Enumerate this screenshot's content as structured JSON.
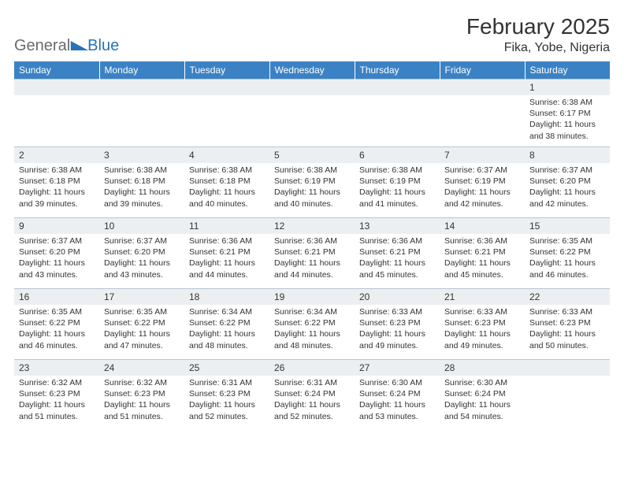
{
  "brand": {
    "part1": "General",
    "part2": "Blue"
  },
  "header": {
    "month_title": "February 2025",
    "location": "Fika, Yobe, Nigeria"
  },
  "weekdays": [
    "Sunday",
    "Monday",
    "Tuesday",
    "Wednesday",
    "Thursday",
    "Friday",
    "Saturday"
  ],
  "colors": {
    "header_bg": "#3b82c4",
    "header_text": "#ffffff",
    "daynum_bg": "#eceff1",
    "border": "#b9c5cf",
    "logo_gray": "#6b6b6b",
    "logo_blue": "#2a72b5",
    "text": "#333333",
    "page_bg": "#ffffff"
  },
  "typography": {
    "month_title_size": 28,
    "location_size": 16,
    "weekday_size": 12,
    "daynum_size": 12,
    "body_size": 10.5
  },
  "layout": {
    "columns": 7,
    "rows": 5,
    "blank_leading_cells": 6
  },
  "days": [
    {
      "n": "1",
      "sunrise": "6:38 AM",
      "sunset": "6:17 PM",
      "daylight": "11 hours and 38 minutes."
    },
    {
      "n": "2",
      "sunrise": "6:38 AM",
      "sunset": "6:18 PM",
      "daylight": "11 hours and 39 minutes."
    },
    {
      "n": "3",
      "sunrise": "6:38 AM",
      "sunset": "6:18 PM",
      "daylight": "11 hours and 39 minutes."
    },
    {
      "n": "4",
      "sunrise": "6:38 AM",
      "sunset": "6:18 PM",
      "daylight": "11 hours and 40 minutes."
    },
    {
      "n": "5",
      "sunrise": "6:38 AM",
      "sunset": "6:19 PM",
      "daylight": "11 hours and 40 minutes."
    },
    {
      "n": "6",
      "sunrise": "6:38 AM",
      "sunset": "6:19 PM",
      "daylight": "11 hours and 41 minutes."
    },
    {
      "n": "7",
      "sunrise": "6:37 AM",
      "sunset": "6:19 PM",
      "daylight": "11 hours and 42 minutes."
    },
    {
      "n": "8",
      "sunrise": "6:37 AM",
      "sunset": "6:20 PM",
      "daylight": "11 hours and 42 minutes."
    },
    {
      "n": "9",
      "sunrise": "6:37 AM",
      "sunset": "6:20 PM",
      "daylight": "11 hours and 43 minutes."
    },
    {
      "n": "10",
      "sunrise": "6:37 AM",
      "sunset": "6:20 PM",
      "daylight": "11 hours and 43 minutes."
    },
    {
      "n": "11",
      "sunrise": "6:36 AM",
      "sunset": "6:21 PM",
      "daylight": "11 hours and 44 minutes."
    },
    {
      "n": "12",
      "sunrise": "6:36 AM",
      "sunset": "6:21 PM",
      "daylight": "11 hours and 44 minutes."
    },
    {
      "n": "13",
      "sunrise": "6:36 AM",
      "sunset": "6:21 PM",
      "daylight": "11 hours and 45 minutes."
    },
    {
      "n": "14",
      "sunrise": "6:36 AM",
      "sunset": "6:21 PM",
      "daylight": "11 hours and 45 minutes."
    },
    {
      "n": "15",
      "sunrise": "6:35 AM",
      "sunset": "6:22 PM",
      "daylight": "11 hours and 46 minutes."
    },
    {
      "n": "16",
      "sunrise": "6:35 AM",
      "sunset": "6:22 PM",
      "daylight": "11 hours and 46 minutes."
    },
    {
      "n": "17",
      "sunrise": "6:35 AM",
      "sunset": "6:22 PM",
      "daylight": "11 hours and 47 minutes."
    },
    {
      "n": "18",
      "sunrise": "6:34 AM",
      "sunset": "6:22 PM",
      "daylight": "11 hours and 48 minutes."
    },
    {
      "n": "19",
      "sunrise": "6:34 AM",
      "sunset": "6:22 PM",
      "daylight": "11 hours and 48 minutes."
    },
    {
      "n": "20",
      "sunrise": "6:33 AM",
      "sunset": "6:23 PM",
      "daylight": "11 hours and 49 minutes."
    },
    {
      "n": "21",
      "sunrise": "6:33 AM",
      "sunset": "6:23 PM",
      "daylight": "11 hours and 49 minutes."
    },
    {
      "n": "22",
      "sunrise": "6:33 AM",
      "sunset": "6:23 PM",
      "daylight": "11 hours and 50 minutes."
    },
    {
      "n": "23",
      "sunrise": "6:32 AM",
      "sunset": "6:23 PM",
      "daylight": "11 hours and 51 minutes."
    },
    {
      "n": "24",
      "sunrise": "6:32 AM",
      "sunset": "6:23 PM",
      "daylight": "11 hours and 51 minutes."
    },
    {
      "n": "25",
      "sunrise": "6:31 AM",
      "sunset": "6:23 PM",
      "daylight": "11 hours and 52 minutes."
    },
    {
      "n": "26",
      "sunrise": "6:31 AM",
      "sunset": "6:24 PM",
      "daylight": "11 hours and 52 minutes."
    },
    {
      "n": "27",
      "sunrise": "6:30 AM",
      "sunset": "6:24 PM",
      "daylight": "11 hours and 53 minutes."
    },
    {
      "n": "28",
      "sunrise": "6:30 AM",
      "sunset": "6:24 PM",
      "daylight": "11 hours and 54 minutes."
    }
  ],
  "labels": {
    "sunrise": "Sunrise:",
    "sunset": "Sunset:",
    "daylight": "Daylight:"
  }
}
